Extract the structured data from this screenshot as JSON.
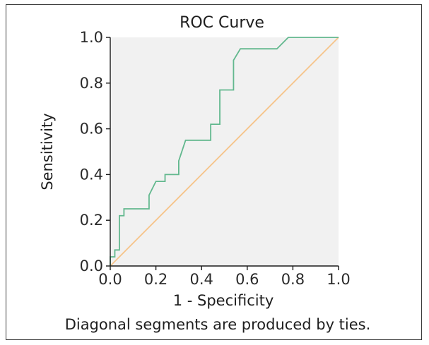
{
  "chart_data": {
    "type": "line",
    "title": "ROC Curve",
    "xlabel": "1 - Specificity",
    "ylabel": "Sensitivity",
    "xlim": [
      0.0,
      1.0
    ],
    "ylim": [
      0.0,
      1.0
    ],
    "x_ticks": [
      "0.0",
      "0.2",
      "0.4",
      "0.6",
      "0.8",
      "1.0"
    ],
    "y_ticks": [
      "0.0",
      "0.2",
      "0.4",
      "0.6",
      "0.8",
      "1.0"
    ],
    "footnote": "Diagonal segments are produced by ties.",
    "grid": false,
    "legend": "none",
    "series": [
      {
        "color": "#62b88e",
        "x": [
          0.0,
          0.0,
          0.02,
          0.02,
          0.04,
          0.04,
          0.06,
          0.06,
          0.08,
          0.08,
          0.17,
          0.17,
          0.2,
          0.2,
          0.24,
          0.24,
          0.3,
          0.3,
          0.33,
          0.33,
          0.44,
          0.44,
          0.48,
          0.48,
          0.54,
          0.54,
          0.57,
          0.57,
          0.73,
          0.78,
          1.0
        ],
        "y": [
          0.0,
          0.04,
          0.04,
          0.07,
          0.07,
          0.22,
          0.22,
          0.25,
          0.25,
          0.25,
          0.25,
          0.31,
          0.37,
          0.37,
          0.37,
          0.4,
          0.4,
          0.46,
          0.55,
          0.55,
          0.55,
          0.62,
          0.62,
          0.77,
          0.77,
          0.9,
          0.95,
          0.95,
          0.95,
          1.0,
          1.0
        ]
      },
      {
        "color": "#f6c48a",
        "x": [
          0.0,
          1.0
        ],
        "y": [
          0.0,
          1.0
        ]
      }
    ],
    "colors": {
      "plot_background": "#f1f1f1",
      "axis": "#1a1a1a"
    }
  }
}
